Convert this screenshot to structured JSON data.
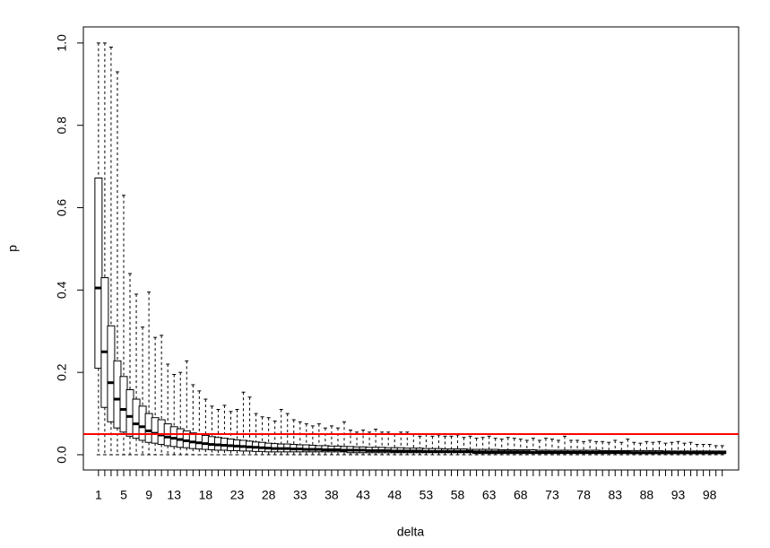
{
  "chart_data": {
    "type": "box",
    "xlabel": "delta",
    "ylabel": "p",
    "categories": [
      1,
      null,
      null,
      null,
      5,
      null,
      null,
      null,
      9,
      null,
      null,
      null,
      13,
      null,
      null,
      null,
      null,
      18,
      null,
      null,
      null,
      null,
      23,
      null,
      null,
      null,
      null,
      28,
      null,
      null,
      null,
      null,
      33,
      null,
      null,
      null,
      null,
      38,
      null,
      null,
      null,
      null,
      43,
      null,
      null,
      null,
      null,
      48,
      null,
      null,
      null,
      null,
      53,
      null,
      null,
      null,
      null,
      58,
      null,
      null,
      null,
      null,
      63,
      null,
      null,
      null,
      null,
      68,
      null,
      null,
      null,
      null,
      73,
      null,
      null,
      null,
      null,
      78,
      null,
      null,
      null,
      null,
      83,
      null,
      null,
      null,
      null,
      88,
      null,
      null,
      null,
      null,
      93,
      null,
      null,
      null,
      null,
      98,
      null,
      null
    ],
    "min": [
      0,
      0,
      0,
      0,
      0,
      0,
      0,
      0,
      0,
      0,
      0,
      0,
      0,
      0,
      0,
      0,
      0,
      0,
      0,
      0,
      0,
      0,
      0,
      0,
      0,
      0,
      0,
      0,
      0,
      0,
      0,
      0,
      0,
      0,
      0,
      0,
      0,
      0,
      0,
      0,
      0,
      0,
      0,
      0,
      0,
      0,
      0,
      0,
      0,
      0,
      0,
      0,
      0,
      0,
      0,
      0,
      0,
      0,
      0,
      0,
      0,
      0,
      0,
      0,
      0,
      0,
      0,
      0,
      0,
      0,
      0,
      0,
      0,
      0,
      0,
      0,
      0,
      0,
      0,
      0,
      0,
      0,
      0,
      0,
      0,
      0,
      0,
      0,
      0,
      0,
      0,
      0,
      0,
      0,
      0,
      0,
      0,
      0,
      0,
      0
    ],
    "q1": [
      0.21,
      0.115,
      0.08,
      0.065,
      0.055,
      0.045,
      0.04,
      0.035,
      0.03,
      0.028,
      0.025,
      0.022,
      0.02,
      0.018,
      0.017,
      0.015,
      0.014,
      0.013,
      0.012,
      0.011,
      0.011,
      0.01,
      0.01,
      0.009,
      0.009,
      0.008,
      0.008,
      0.007,
      0.007,
      0.007,
      0.007,
      0.007,
      0.007,
      0.007,
      0.007,
      0.007,
      0.007,
      0.007,
      0.007,
      0.007,
      0.005,
      0.005,
      0.005,
      0.005,
      0.005,
      0.005,
      0.005,
      0.005,
      0.005,
      0.005,
      0.005,
      0.005,
      0.005,
      0.005,
      0.005,
      0.005,
      0.005,
      0.005,
      0.005,
      0.005,
      0.003,
      0.003,
      0.003,
      0.003,
      0.003,
      0.003,
      0.003,
      0.003,
      0.003,
      0.003,
      0.003,
      0.003,
      0.003,
      0.003,
      0.003,
      0.003,
      0.003,
      0.003,
      0.003,
      0.003,
      0.003,
      0.003,
      0.003,
      0.003,
      0.003,
      0.003,
      0.003,
      0.003,
      0.003,
      0.003,
      0.003,
      0.003,
      0.003,
      0.003,
      0.003,
      0.003,
      0.003,
      0.003,
      0.003,
      0.003
    ],
    "median": [
      0.405,
      0.25,
      0.175,
      0.135,
      0.11,
      0.093,
      0.075,
      0.068,
      0.058,
      0.052,
      0.048,
      0.043,
      0.04,
      0.037,
      0.034,
      0.031,
      0.029,
      0.027,
      0.025,
      0.024,
      0.023,
      0.022,
      0.021,
      0.02,
      0.019,
      0.018,
      0.017,
      0.016,
      0.015,
      0.015,
      0.015,
      0.014,
      0.014,
      0.013,
      0.013,
      0.013,
      0.012,
      0.012,
      0.012,
      0.011,
      0.011,
      0.011,
      0.011,
      0.01,
      0.01,
      0.01,
      0.01,
      0.009,
      0.009,
      0.009,
      0.009,
      0.009,
      0.008,
      0.008,
      0.008,
      0.008,
      0.008,
      0.008,
      0.008,
      0.008,
      0.007,
      0.007,
      0.007,
      0.007,
      0.007,
      0.007,
      0.007,
      0.007,
      0.007,
      0.006,
      0.006,
      0.006,
      0.006,
      0.006,
      0.006,
      0.006,
      0.006,
      0.006,
      0.006,
      0.006,
      0.006,
      0.006,
      0.006,
      0.006,
      0.006,
      0.005,
      0.005,
      0.005,
      0.005,
      0.005,
      0.005,
      0.005,
      0.005,
      0.005,
      0.005,
      0.005,
      0.005,
      0.005,
      0.005,
      0.005
    ],
    "q3": [
      0.672,
      0.43,
      0.313,
      0.228,
      0.19,
      0.158,
      0.135,
      0.118,
      0.1,
      0.09,
      0.085,
      0.075,
      0.068,
      0.063,
      0.058,
      0.053,
      0.05,
      0.047,
      0.044,
      0.042,
      0.04,
      0.038,
      0.036,
      0.035,
      0.033,
      0.031,
      0.03,
      0.028,
      0.027,
      0.026,
      0.026,
      0.025,
      0.024,
      0.024,
      0.023,
      0.022,
      0.022,
      0.021,
      0.021,
      0.02,
      0.02,
      0.019,
      0.019,
      0.018,
      0.018,
      0.018,
      0.017,
      0.017,
      0.017,
      0.016,
      0.016,
      0.016,
      0.015,
      0.015,
      0.015,
      0.014,
      0.014,
      0.014,
      0.014,
      0.013,
      0.013,
      0.013,
      0.013,
      0.013,
      0.012,
      0.012,
      0.012,
      0.012,
      0.012,
      0.012,
      0.011,
      0.011,
      0.011,
      0.011,
      0.011,
      0.011,
      0.011,
      0.011,
      0.011,
      0.011,
      0.01,
      0.01,
      0.01,
      0.01,
      0.01,
      0.01,
      0.01,
      0.01,
      0.01,
      0.01,
      0.009,
      0.009,
      0.009,
      0.009,
      0.009,
      0.009,
      0.009,
      0.009,
      0.009,
      0.009
    ],
    "max": [
      1,
      1,
      0.99,
      0.93,
      0.63,
      0.44,
      0.39,
      0.31,
      0.395,
      0.285,
      0.29,
      0.22,
      0.195,
      0.2,
      0.228,
      0.17,
      0.155,
      0.135,
      0.118,
      0.11,
      0.12,
      0.105,
      0.11,
      0.152,
      0.14,
      0.1,
      0.092,
      0.09,
      0.082,
      0.11,
      0.1,
      0.085,
      0.08,
      0.075,
      0.07,
      0.075,
      0.065,
      0.07,
      0.065,
      0.08,
      0.06,
      0.055,
      0.06,
      0.055,
      0.062,
      0.055,
      0.055,
      0.05,
      0.055,
      0.055,
      0.05,
      0.045,
      0.05,
      0.045,
      0.048,
      0.045,
      0.045,
      0.048,
      0.042,
      0.045,
      0.04,
      0.042,
      0.045,
      0.04,
      0.038,
      0.042,
      0.04,
      0.038,
      0.035,
      0.04,
      0.035,
      0.04,
      0.038,
      0.035,
      0.045,
      0.035,
      0.035,
      0.032,
      0.035,
      0.032,
      0.032,
      0.03,
      0.035,
      0.03,
      0.038,
      0.03,
      0.028,
      0.032,
      0.03,
      0.032,
      0.028,
      0.03,
      0.032,
      0.028,
      0.03,
      0.025,
      0.025,
      0.025,
      0.022,
      0.022
    ],
    "xlim": [
      -1.4,
      102.6
    ],
    "ylim": [
      -0.037,
      1.039
    ],
    "yticks": [
      {
        "value": 0,
        "label": "0.0"
      },
      0.2,
      0.4,
      0.6,
      0.8,
      {
        "value": 1,
        "label": "1.0"
      }
    ],
    "hline": {
      "value": 0.05,
      "color": "#ff0000"
    }
  }
}
